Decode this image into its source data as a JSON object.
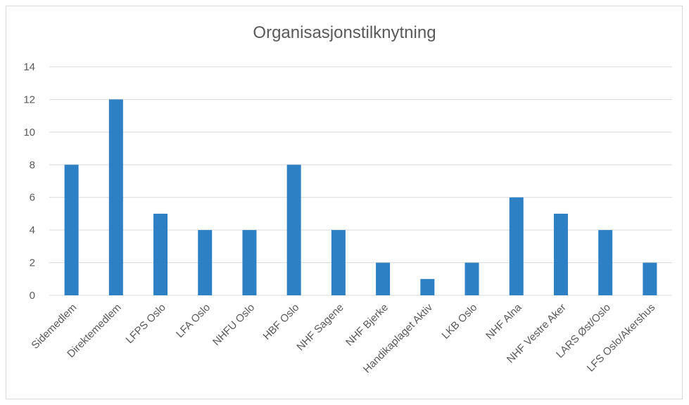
{
  "chart_data": {
    "type": "bar",
    "title": "Organisasjonstilknytning",
    "categories": [
      "Sidemedlem",
      "Direktemedlem",
      "LFPS Oslo",
      "LFA Oslo",
      "NHFU Oslo",
      "HBF Oslo",
      "NHF Sagene",
      "NHF Bjerke",
      "Handikaplaget Aktiv",
      "LKB Oslo",
      "NHF Alna",
      "NHF Vestre Aker",
      "LARS Øst/Oslo",
      "LFS Oslo/Akershus"
    ],
    "values": [
      8,
      12,
      5,
      4,
      4,
      8,
      4,
      2,
      1,
      2,
      6,
      5,
      4,
      2
    ],
    "ylim": [
      0,
      14
    ],
    "yticks": [
      0,
      2,
      4,
      6,
      8,
      10,
      12,
      14
    ],
    "grid": true,
    "legend": "none",
    "bar_color": "#2e80c4",
    "grid_color": "#d9d9d9"
  }
}
